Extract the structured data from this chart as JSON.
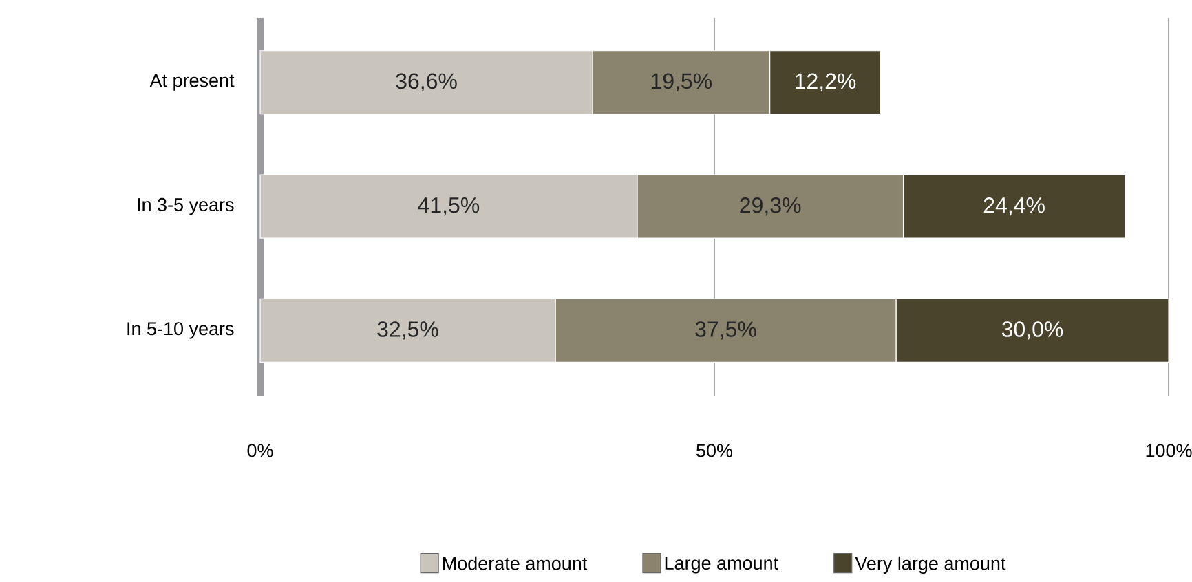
{
  "chart_data": {
    "type": "bar",
    "orientation": "horizontal",
    "stacked": true,
    "categories": [
      "At present",
      "In 3-5 years",
      "In 5-10 years"
    ],
    "series": [
      {
        "name": "Moderate amount",
        "color": "#c9c5bc",
        "values": [
          36.6,
          41.5,
          32.5
        ],
        "value_labels": [
          "36,6%",
          "41,5%",
          "32,5%"
        ]
      },
      {
        "name": "Large amount",
        "color": "#8a846f",
        "values": [
          19.5,
          29.3,
          37.5
        ],
        "value_labels": [
          "19,5%",
          "29,3%",
          "37,5%"
        ]
      },
      {
        "name": "Very large amount",
        "color": "#4a442c",
        "values": [
          12.2,
          24.4,
          30.0
        ],
        "value_labels": [
          "12,2%",
          "24,4%",
          "30,0%"
        ]
      }
    ],
    "xlim": [
      0,
      100
    ],
    "xticks": [
      {
        "value": 0,
        "label": "0%"
      },
      {
        "value": 50,
        "label": "50%"
      },
      {
        "value": 100,
        "label": "100%"
      }
    ],
    "grid": "x",
    "legend": "bottom"
  }
}
